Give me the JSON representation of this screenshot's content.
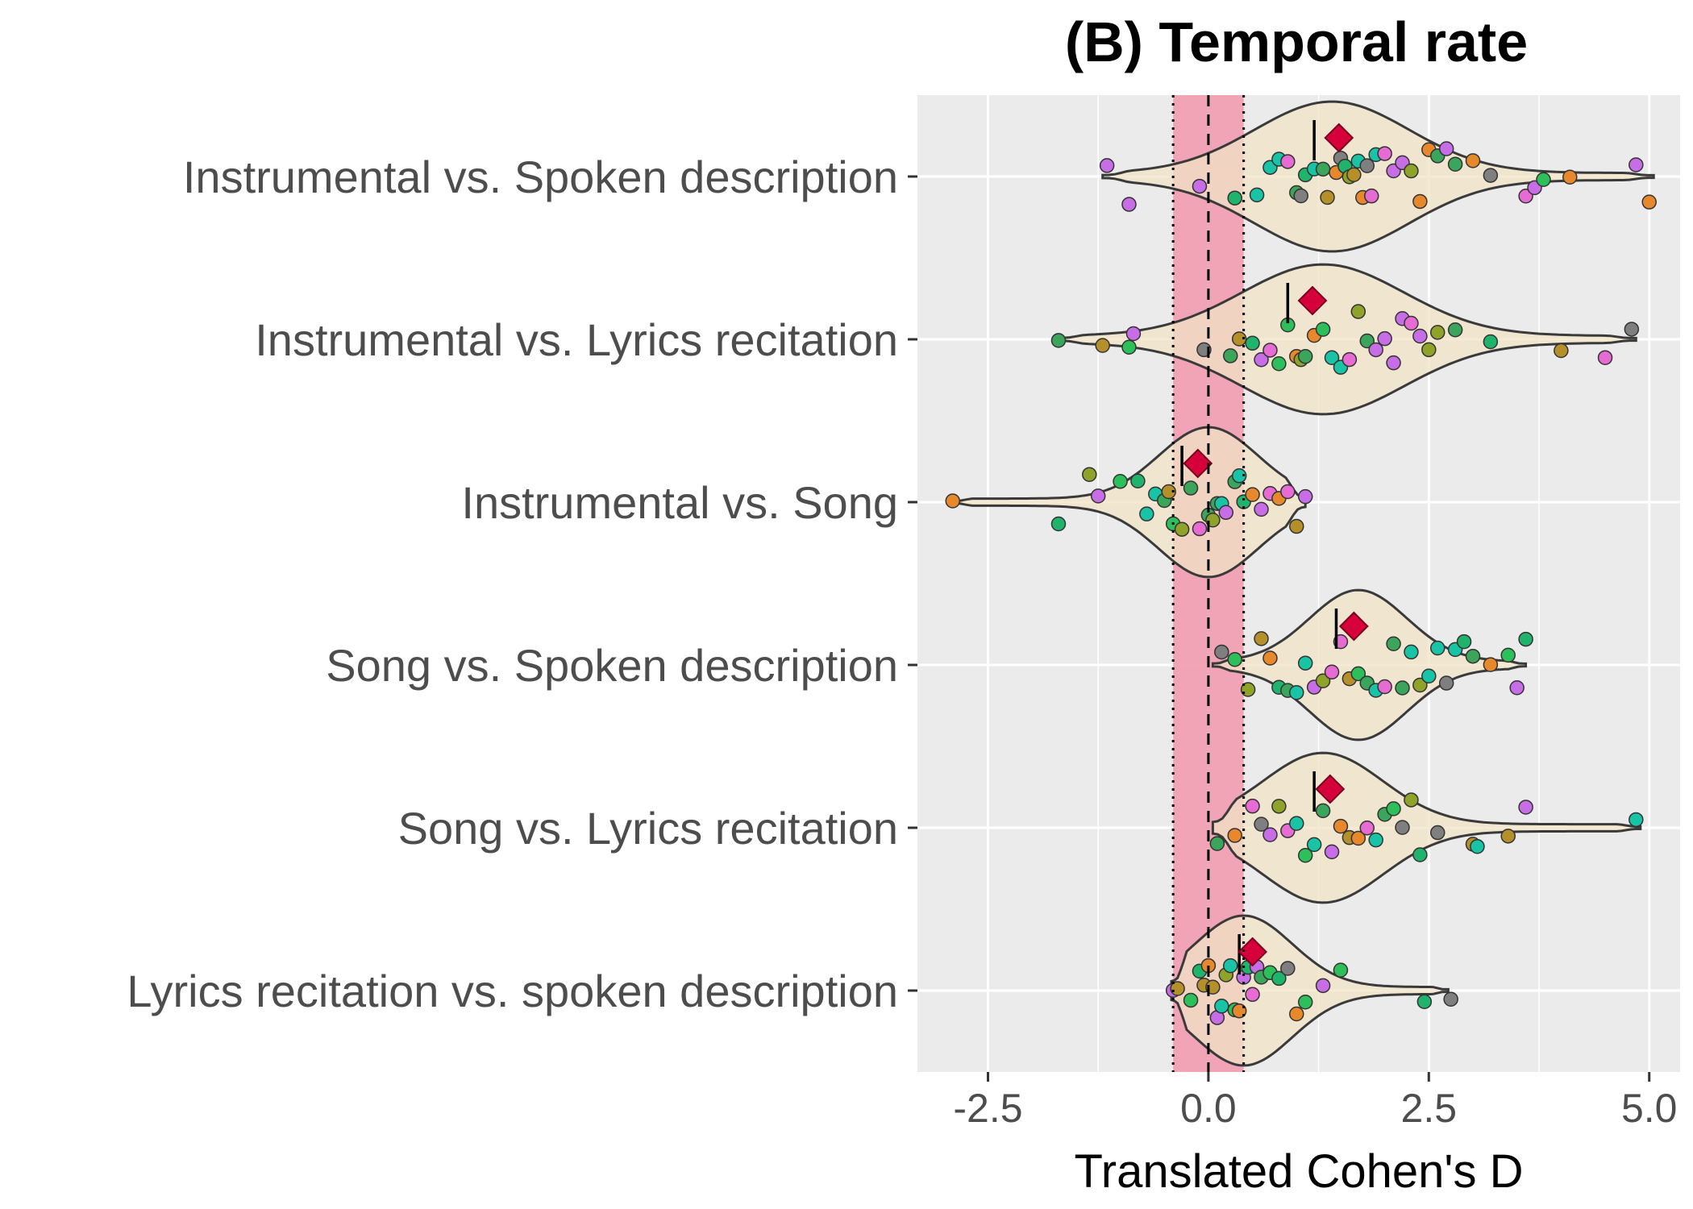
{
  "chart_data": {
    "type": "violin",
    "title": "(B) Temporal rate",
    "xlabel": "Translated Cohen's D",
    "ylabel": "",
    "xlim": [
      -3.3,
      5.35
    ],
    "xticks": [
      -2.5,
      0.0,
      2.5,
      5.0
    ],
    "xtick_labels": [
      "-2.5",
      "0.0",
      "2.5",
      "5.0"
    ],
    "grid": true,
    "reference_line": 0.0,
    "equivalence_band": [
      -0.4,
      0.4
    ],
    "colors": {
      "panel": "#ebebeb",
      "grid": "#ffffff",
      "band": "#f0a0b2",
      "violin_fill": "#f1e3c6",
      "violin_stroke": "#3a3a3a",
      "mean_marker": "#d6003a",
      "point_palette": [
        "#2dbf5a",
        "#1fb36b",
        "#3aa55b",
        "#8fa22a",
        "#e7882d",
        "#e66bd2",
        "#c76ee6",
        "#19c3a5",
        "#7f7f7f",
        "#b5902a"
      ]
    },
    "categories": [
      "Instrumental vs. Spoken description",
      "Instrumental vs. Lyrics recitation",
      "Instrumental vs. Song",
      "Song vs. Spoken description",
      "Song vs. Lyrics recitation",
      "Lyrics recitation vs. spoken description"
    ],
    "series": [
      {
        "category": "Instrumental vs. Spoken description",
        "mean": 1.48,
        "median": 1.2,
        "min": -1.2,
        "max": 5.05,
        "mode": 1.4,
        "peak_width": 0.38,
        "points": [
          -1.15,
          -0.9,
          -0.1,
          0.3,
          0.55,
          0.7,
          0.8,
          0.9,
          1.0,
          1.05,
          1.1,
          1.2,
          1.3,
          1.35,
          1.45,
          1.5,
          1.55,
          1.6,
          1.65,
          1.7,
          1.75,
          1.8,
          1.85,
          1.9,
          2.0,
          2.1,
          2.2,
          2.3,
          2.4,
          2.5,
          2.6,
          2.7,
          2.8,
          3.0,
          3.2,
          3.6,
          3.7,
          3.8,
          4.1,
          4.85,
          5.0
        ]
      },
      {
        "category": "Instrumental vs. Lyrics recitation",
        "mean": 1.18,
        "median": 0.9,
        "min": -1.72,
        "max": 4.85,
        "mode": 1.3,
        "peak_width": 0.4,
        "points": [
          -1.7,
          -1.2,
          -0.9,
          -0.85,
          -0.05,
          0.25,
          0.35,
          0.5,
          0.6,
          0.7,
          0.8,
          0.9,
          1.0,
          1.05,
          1.1,
          1.2,
          1.3,
          1.4,
          1.5,
          1.6,
          1.7,
          1.8,
          1.9,
          2.0,
          2.1,
          2.2,
          2.3,
          2.4,
          2.5,
          2.6,
          2.8,
          3.2,
          4.0,
          4.5,
          4.8
        ]
      },
      {
        "category": "Instrumental vs. Song",
        "mean": -0.12,
        "median": -0.3,
        "min": -2.9,
        "max": 1.1,
        "mode": 0.0,
        "peak_width": 0.4,
        "points": [
          -2.9,
          -1.7,
          -1.35,
          -1.25,
          -1.0,
          -0.8,
          -0.7,
          -0.6,
          -0.5,
          -0.45,
          -0.4,
          -0.3,
          -0.2,
          -0.1,
          0.0,
          0.05,
          0.1,
          0.15,
          0.2,
          0.3,
          0.35,
          0.4,
          0.5,
          0.6,
          0.7,
          0.8,
          0.9,
          1.0,
          1.1
        ]
      },
      {
        "category": "Song vs. Spoken description",
        "mean": 1.65,
        "median": 1.45,
        "min": 0.05,
        "max": 3.6,
        "mode": 1.7,
        "peak_width": 0.35,
        "points": [
          0.15,
          0.3,
          0.45,
          0.6,
          0.7,
          0.8,
          0.9,
          1.0,
          1.1,
          1.2,
          1.3,
          1.4,
          1.5,
          1.6,
          1.7,
          1.8,
          1.9,
          2.0,
          2.1,
          2.2,
          2.3,
          2.4,
          2.5,
          2.6,
          2.7,
          2.8,
          2.9,
          3.0,
          3.2,
          3.4,
          3.5,
          3.6
        ]
      },
      {
        "category": "Song vs. Lyrics recitation",
        "mean": 1.38,
        "median": 1.2,
        "min": 0.05,
        "max": 4.9,
        "mode": 1.3,
        "peak_width": 0.37,
        "points": [
          0.1,
          0.3,
          0.5,
          0.6,
          0.7,
          0.8,
          0.9,
          1.0,
          1.1,
          1.2,
          1.3,
          1.4,
          1.5,
          1.6,
          1.7,
          1.8,
          1.9,
          2.0,
          2.1,
          2.2,
          2.3,
          2.4,
          2.6,
          3.0,
          3.05,
          3.4,
          3.6,
          4.85
        ]
      },
      {
        "category": "Lyrics recitation vs. spoken description",
        "mean": 0.5,
        "median": 0.35,
        "min": -0.42,
        "max": 2.72,
        "mode": 0.4,
        "peak_width": 0.4,
        "points": [
          -0.4,
          -0.35,
          -0.2,
          -0.1,
          -0.05,
          0.0,
          0.05,
          0.1,
          0.15,
          0.2,
          0.25,
          0.3,
          0.35,
          0.4,
          0.45,
          0.5,
          0.55,
          0.6,
          0.7,
          0.8,
          0.9,
          1.0,
          1.1,
          1.3,
          1.5,
          2.45,
          2.75
        ]
      }
    ]
  }
}
